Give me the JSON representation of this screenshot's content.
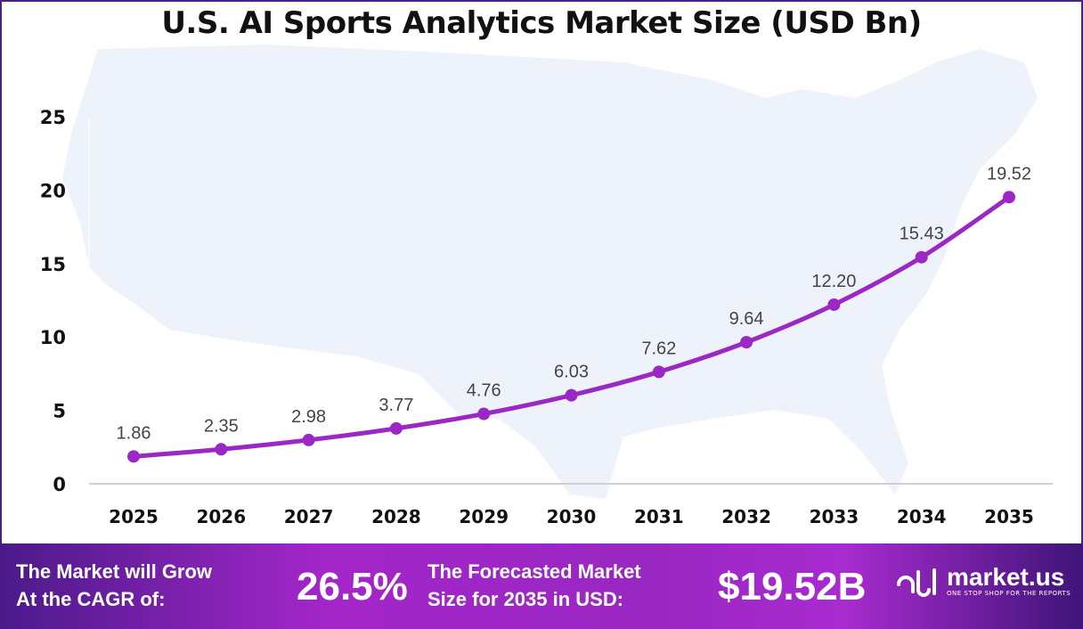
{
  "chart_data": {
    "type": "line",
    "title": "U.S. AI Sports Analytics Market Size (USD Bn)",
    "categories": [
      "2025",
      "2026",
      "2027",
      "2028",
      "2029",
      "2030",
      "2031",
      "2032",
      "2033",
      "2034",
      "2035"
    ],
    "values": [
      1.86,
      2.35,
      2.98,
      3.77,
      4.76,
      6.03,
      7.62,
      9.64,
      12.2,
      15.43,
      19.52
    ],
    "data_labels": [
      "1.86",
      "2.35",
      "2.98",
      "3.77",
      "4.76",
      "6.03",
      "7.62",
      "9.64",
      "12.20",
      "15.43",
      "19.52"
    ],
    "ylim": [
      0,
      25
    ],
    "yticks": [
      "0",
      "5",
      "10",
      "15",
      "20",
      "25"
    ],
    "grid": false,
    "line_color": "#9b27c4",
    "background_map": "United States silhouette"
  },
  "banner": {
    "cagr_label_1": "The Market will Grow",
    "cagr_label_2": "At the CAGR of:",
    "cagr_value": "26.5%",
    "forecast_label_1": "The Forecasted Market",
    "forecast_label_2": "Size for 2035 in USD:",
    "forecast_value": "$19.52B",
    "logo_name": "market.us",
    "logo_tagline": "ONE STOP SHOP FOR THE REPORTS"
  }
}
